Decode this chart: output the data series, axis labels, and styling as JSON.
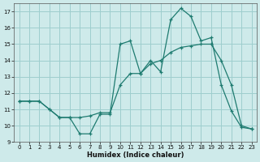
{
  "title": "",
  "xlabel": "Humidex (Indice chaleur)",
  "ylabel": "",
  "background_color": "#ceeaea",
  "grid_color": "#9ecece",
  "line_color": "#1e7b70",
  "xlim": [
    -0.5,
    23.5
  ],
  "ylim": [
    9,
    17.5
  ],
  "xticks": [
    0,
    1,
    2,
    3,
    4,
    5,
    6,
    7,
    8,
    9,
    10,
    11,
    12,
    13,
    14,
    15,
    16,
    17,
    18,
    19,
    20,
    21,
    22,
    23
  ],
  "yticks": [
    9,
    10,
    11,
    12,
    13,
    14,
    15,
    16,
    17
  ],
  "series1_x": [
    0,
    1,
    2,
    3,
    4,
    5,
    6,
    7,
    8,
    9,
    10,
    11,
    12,
    13,
    14,
    15,
    16,
    17,
    18,
    19,
    20,
    21,
    22,
    23
  ],
  "series1_y": [
    11.5,
    11.5,
    11.5,
    11.0,
    10.5,
    10.5,
    10.5,
    10.6,
    10.8,
    10.8,
    12.5,
    13.2,
    13.2,
    13.8,
    14.0,
    14.5,
    14.8,
    14.9,
    15.0,
    15.0,
    14.0,
    12.5,
    10.0,
    9.8
  ],
  "series2_x": [
    0,
    1,
    2,
    3,
    4,
    5,
    6,
    7,
    8,
    9,
    10,
    11,
    12,
    13,
    14,
    15,
    16,
    17,
    18,
    19,
    20,
    21,
    22,
    23
  ],
  "series2_y": [
    11.5,
    11.5,
    11.5,
    11.0,
    10.5,
    10.5,
    9.5,
    9.5,
    10.7,
    10.7,
    15.0,
    15.2,
    13.2,
    14.0,
    13.3,
    16.5,
    17.2,
    16.7,
    15.2,
    15.4,
    12.5,
    10.9,
    9.9,
    9.8
  ]
}
